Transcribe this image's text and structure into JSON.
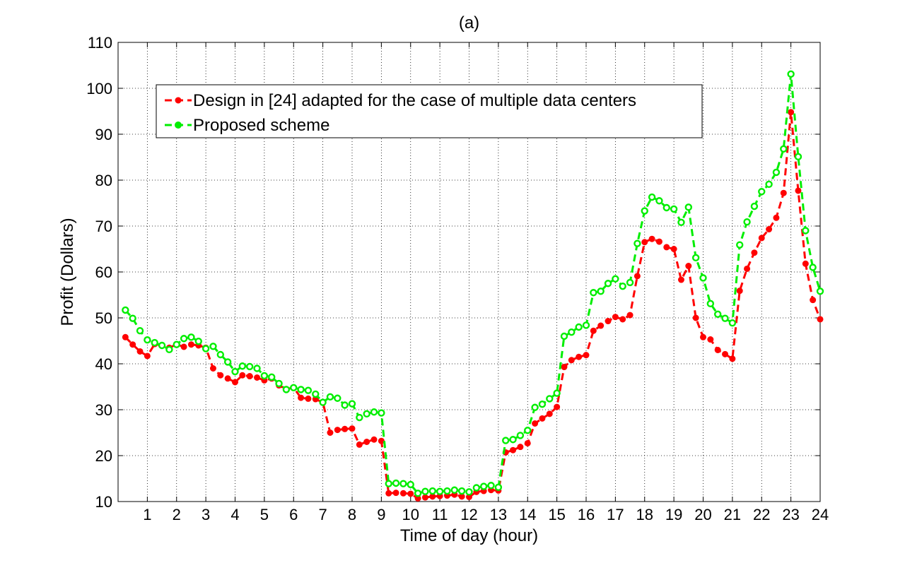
{
  "chart_data": {
    "type": "line",
    "title": "(a)",
    "xlabel": "Time of day (hour)",
    "ylabel": "Profit (Dollars)",
    "xlim": [
      0,
      24
    ],
    "ylim": [
      10,
      110
    ],
    "xticks": [
      1,
      2,
      3,
      4,
      5,
      6,
      7,
      8,
      9,
      10,
      11,
      12,
      13,
      14,
      15,
      16,
      17,
      18,
      19,
      20,
      21,
      22,
      23,
      24
    ],
    "yticks": [
      10,
      20,
      30,
      40,
      50,
      60,
      70,
      80,
      90,
      100,
      110
    ],
    "grid": true,
    "legend_position": "top-left",
    "x": [
      0.25,
      0.5,
      0.75,
      1.0,
      1.25,
      1.5,
      1.75,
      2.0,
      2.25,
      2.5,
      2.75,
      3.0,
      3.25,
      3.5,
      3.75,
      4.0,
      4.25,
      4.5,
      4.75,
      5.0,
      5.25,
      5.5,
      5.75,
      6.0,
      6.25,
      6.5,
      6.75,
      7.0,
      7.25,
      7.5,
      7.75,
      8.0,
      8.25,
      8.5,
      8.75,
      9.0,
      9.25,
      9.5,
      9.75,
      10.0,
      10.25,
      10.5,
      10.75,
      11.0,
      11.25,
      11.5,
      11.75,
      12.0,
      12.25,
      12.5,
      12.75,
      13.0,
      13.25,
      13.5,
      13.75,
      14.0,
      14.25,
      14.5,
      14.75,
      15.0,
      15.25,
      15.5,
      15.75,
      16.0,
      16.25,
      16.5,
      16.75,
      17.0,
      17.25,
      17.5,
      17.75,
      18.0,
      18.25,
      18.5,
      18.75,
      19.0,
      19.25,
      19.5,
      19.75,
      20.0,
      20.25,
      20.5,
      20.75,
      21.0,
      21.25,
      21.5,
      21.75,
      22.0,
      22.25,
      22.5,
      22.75,
      23.0,
      23.25,
      23.5,
      23.75,
      24.0
    ],
    "series": [
      {
        "name": "Design in [24] adapted for the case of multiple data centers",
        "color": "#ff0000",
        "marker": "filled-circle",
        "values": [
          45.8,
          44.2,
          42.7,
          41.7,
          44.3,
          44.0,
          43.5,
          44.2,
          43.7,
          44.2,
          44.0,
          43.5,
          39.0,
          37.5,
          36.8,
          36.0,
          37.5,
          37.3,
          37.0,
          36.4,
          36.8,
          35.3,
          34.5,
          34.8,
          32.6,
          32.4,
          32.3,
          31.6,
          25.0,
          25.6,
          25.8,
          25.9,
          22.4,
          23.0,
          23.5,
          23.2,
          11.8,
          11.9,
          11.8,
          11.7,
          10.7,
          10.9,
          11.1,
          11.2,
          11.3,
          11.5,
          11.1,
          11.0,
          12.1,
          12.3,
          12.5,
          12.4,
          20.7,
          21.2,
          21.9,
          22.7,
          27.0,
          28.1,
          29.1,
          30.6,
          39.3,
          40.8,
          41.5,
          41.9,
          47.2,
          48.3,
          49.3,
          50.2,
          49.7,
          50.6,
          59.1,
          66.5,
          67.2,
          66.6,
          65.4,
          65.0,
          58.3,
          61.3,
          50.0,
          45.8,
          45.3,
          43.0,
          42.1,
          41.1,
          55.9,
          60.7,
          64.2,
          67.4,
          69.3,
          71.8,
          77.2,
          94.8,
          77.7,
          61.8,
          53.9,
          49.7
        ]
      },
      {
        "name": "Proposed scheme",
        "color": "#00ee00",
        "marker": "open-circle",
        "values": [
          51.7,
          49.9,
          47.2,
          45.2,
          44.6,
          44.0,
          43.1,
          44.2,
          45.5,
          45.8,
          44.9,
          43.3,
          43.8,
          42.0,
          40.4,
          38.3,
          39.5,
          39.4,
          39.0,
          37.4,
          37.1,
          35.7,
          34.4,
          34.8,
          34.4,
          34.2,
          33.4,
          31.6,
          32.8,
          32.5,
          31.0,
          31.3,
          28.3,
          29.1,
          29.5,
          29.3,
          13.9,
          14.0,
          13.9,
          13.7,
          11.8,
          12.2,
          12.3,
          12.2,
          12.3,
          12.5,
          12.3,
          12.1,
          13.0,
          13.3,
          13.5,
          13.1,
          23.3,
          23.5,
          24.4,
          25.5,
          30.5,
          31.2,
          32.4,
          33.6,
          46.0,
          46.9,
          48.0,
          48.4,
          55.5,
          55.8,
          57.5,
          58.5,
          56.9,
          57.7,
          66.2,
          73.3,
          76.3,
          75.5,
          74.0,
          73.7,
          70.8,
          74.1,
          63.1,
          58.7,
          53.1,
          50.8,
          49.9,
          48.9,
          65.9,
          70.9,
          74.3,
          77.5,
          79.1,
          81.7,
          86.8,
          103.1,
          85.1,
          69.0,
          61.0,
          55.8
        ]
      }
    ]
  }
}
